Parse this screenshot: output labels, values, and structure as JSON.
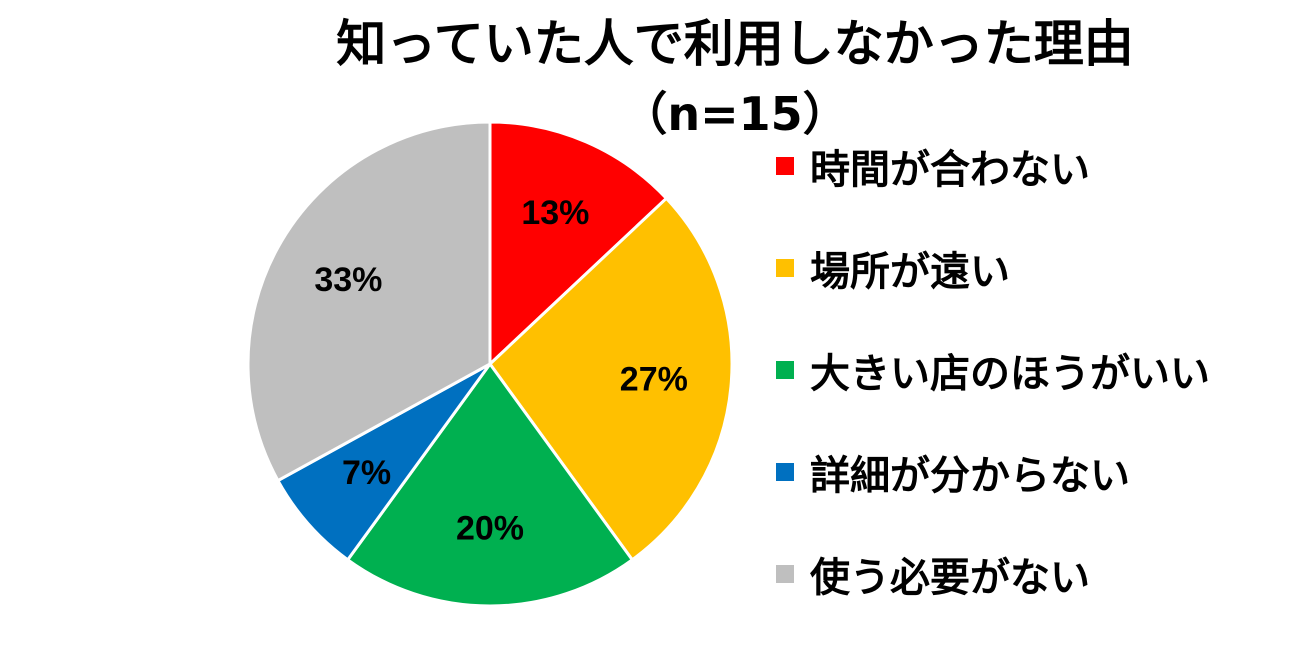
{
  "chart_data": {
    "type": "pie",
    "title": "知っていた人で利用しなかった理由",
    "subtitle": "（n=15）",
    "legend_position": "right",
    "slices": [
      {
        "label": "時間が合わない",
        "value": 13,
        "value_label": "13%",
        "color": "#FF0000"
      },
      {
        "label": "場所が遠い",
        "value": 27,
        "value_label": "27%",
        "color": "#FFC000"
      },
      {
        "label": "大きい店のほうがいい",
        "value": 20,
        "value_label": "20%",
        "color": "#00B050"
      },
      {
        "label": "詳細が分からない",
        "value": 7,
        "value_label": "7%",
        "color": "#0070C0"
      },
      {
        "label": "使う必要がない",
        "value": 33,
        "value_label": "33%",
        "color": "#BFBFBF"
      }
    ]
  }
}
